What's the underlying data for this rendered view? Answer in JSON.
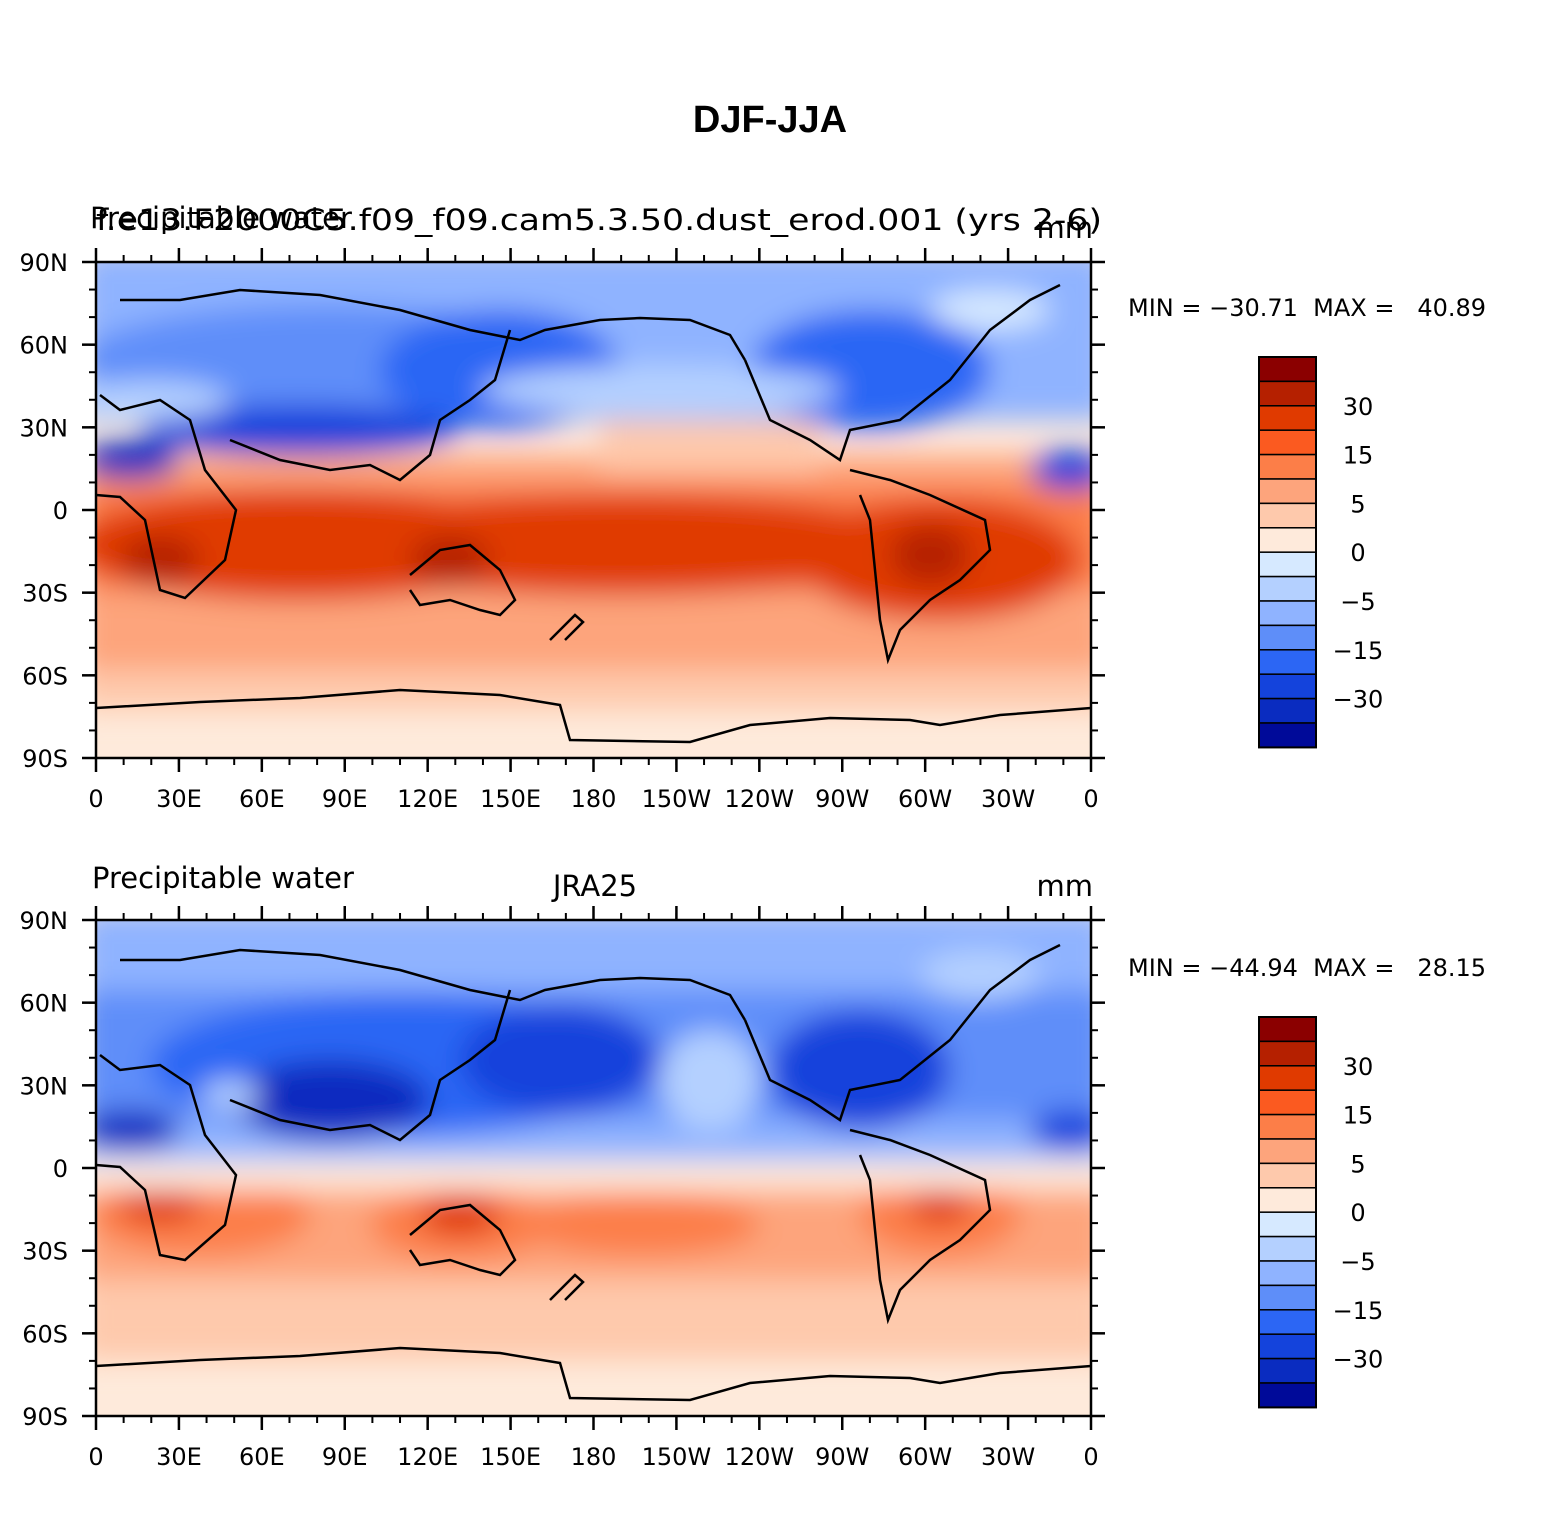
{
  "title": "DJF-JJA",
  "panels": [
    {
      "left_title": "Precipitable water",
      "center_title": "f.e13.F2000C5.f09_f09.cam5.3.50.dust_erod.001 (yrs 2-6)",
      "right_title": "mm",
      "stats": "MIN = −30.71  MAX =   40.89"
    },
    {
      "left_title": "Precipitable water",
      "center_title": "JRA25",
      "right_title": "mm",
      "stats": "MIN = −44.94  MAX =   28.15"
    }
  ],
  "map": {
    "lat_ticks": [
      "90N",
      "60N",
      "30N",
      "0",
      "30S",
      "60S",
      "90S"
    ],
    "lon_ticks": [
      "0",
      "30E",
      "60E",
      "90E",
      "120E",
      "150E",
      "180",
      "150W",
      "120W",
      "90W",
      "60W",
      "30W",
      "0"
    ]
  },
  "colorbar": {
    "labels": [
      "30",
      "15",
      "5",
      "0",
      "−5",
      "−15",
      "−30"
    ],
    "colors_top_to_bottom": [
      "#8b0000",
      "#b52000",
      "#e03a00",
      "#fb5a20",
      "#fc7e48",
      "#fda47c",
      "#fec9ac",
      "#feeadb",
      "#d6e9ff",
      "#b4d0ff",
      "#8fb3ff",
      "#5e8ef9",
      "#2c66f4",
      "#1443dc",
      "#0a2cc0",
      "#000a99"
    ]
  },
  "chart_data": [
    {
      "type": "heatmap",
      "title": "DJF-JJA",
      "subtitle": "f.e13.F2000C5.f09_f09.cam5.3.50.dust_erod.001 (yrs 2-6)",
      "variable": "Precipitable water",
      "units": "mm",
      "min": -30.71,
      "max": 40.89,
      "x_range": [
        0,
        360
      ],
      "y_range": [
        -90,
        90
      ],
      "contour_levels": [
        -35,
        -30,
        -25,
        -20,
        -15,
        -10,
        -5,
        -2.5,
        0,
        2.5,
        5,
        10,
        15,
        20,
        25,
        30,
        35
      ]
    },
    {
      "type": "heatmap",
      "title": "DJF-JJA",
      "subtitle": "JRA25",
      "variable": "Precipitable water",
      "units": "mm",
      "min": -44.94,
      "max": 28.15,
      "x_range": [
        0,
        360
      ],
      "y_range": [
        -90,
        90
      ],
      "contour_levels": [
        -35,
        -30,
        -25,
        -20,
        -15,
        -10,
        -5,
        -2.5,
        0,
        2.5,
        5,
        10,
        15,
        20,
        25,
        30,
        35
      ]
    }
  ]
}
